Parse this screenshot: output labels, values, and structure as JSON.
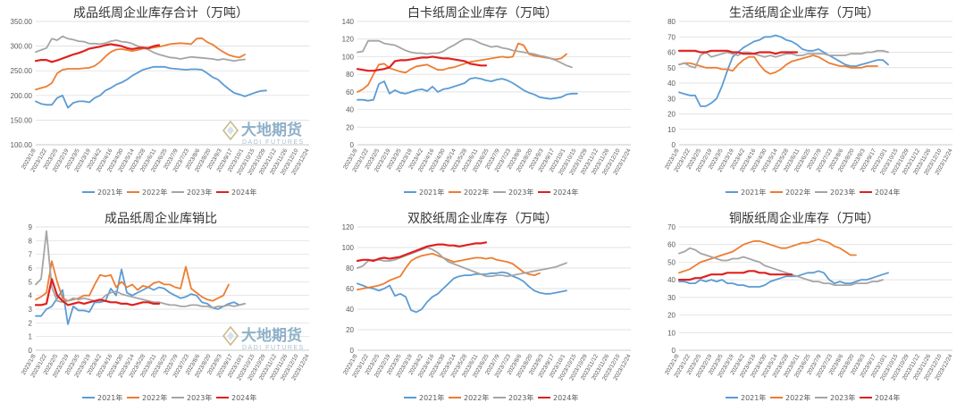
{
  "colors": {
    "2021": "#5b9bd5",
    "2022": "#ed7d31",
    "2023": "#a5a5a5",
    "2024": "#e02020"
  },
  "watermark": {
    "text": "大地期货",
    "sub": "DADI FUTURES"
  },
  "x_labels_mmdd": [
    "1/8",
    "1/22",
    "2/5",
    "2/19",
    "3/5",
    "3/19",
    "4/2",
    "4/16",
    "4/30",
    "5/14",
    "5/28",
    "6/11",
    "6/25",
    "7/9",
    "7/23",
    "8/6",
    "8/20",
    "9/3",
    "9/17",
    "10/1",
    "10/15",
    "10/29",
    "11/12",
    "11/26",
    "12/10",
    "12/24"
  ],
  "chart_data": [
    {
      "type": "line",
      "title": "成品纸周企业库存合计（万吨）",
      "ylim": [
        100,
        350
      ],
      "yticks": [
        "100.00",
        "150.00",
        "200.00",
        "250.00",
        "300.00",
        "350.00"
      ],
      "x_tick_prefix": "2023/",
      "legend_position": "bottom",
      "watermark": true,
      "series": [
        {
          "name": "2021年",
          "values": [
            188,
            183,
            181,
            181,
            195,
            200,
            175,
            185,
            188,
            188,
            186,
            195,
            200,
            210,
            215,
            222,
            226,
            232,
            240,
            246,
            252,
            255,
            258,
            258,
            258,
            255,
            254,
            253,
            252,
            253,
            253,
            252,
            245,
            237,
            232,
            222,
            213,
            205,
            202,
            198,
            202,
            206,
            209,
            210
          ]
        },
        {
          "name": "2022年",
          "values": [
            212,
            215,
            218,
            225,
            245,
            252,
            254,
            254,
            254,
            255,
            256,
            260,
            268,
            279,
            288,
            293,
            294,
            292,
            290,
            292,
            295,
            295,
            297,
            299,
            301,
            304,
            305,
            306,
            305,
            304,
            315,
            316,
            308,
            303,
            295,
            288,
            282,
            279,
            277,
            283
          ]
        },
        {
          "name": "2023年",
          "values": [
            288,
            292,
            296,
            315,
            312,
            320,
            315,
            313,
            310,
            309,
            305,
            305,
            304,
            306,
            310,
            312,
            309,
            308,
            305,
            300,
            297,
            293,
            287,
            283,
            280,
            277,
            276,
            274,
            276,
            278,
            277,
            276,
            275,
            274,
            272,
            274,
            272,
            270,
            272,
            273
          ]
        },
        {
          "name": "2024年",
          "values": [
            270,
            272,
            272,
            268,
            271,
            275,
            279,
            283,
            286,
            290,
            295,
            297,
            299,
            302,
            304,
            302,
            300,
            296,
            294,
            296,
            297,
            296,
            300,
            302
          ]
        }
      ]
    },
    {
      "type": "line",
      "title": "白卡纸周企业库存（万吨）",
      "ylim": [
        0,
        140
      ],
      "yticks": [
        "0",
        "20",
        "40",
        "60",
        "80",
        "100",
        "120",
        "140"
      ],
      "x_tick_prefix": "2023/",
      "legend_position": "bottom",
      "watermark": false,
      "series": [
        {
          "name": "2021年",
          "values": [
            51,
            51,
            50,
            51,
            69,
            72,
            58,
            62,
            59,
            58,
            60,
            62,
            63,
            61,
            66,
            60,
            63,
            64,
            66,
            68,
            70,
            75,
            76,
            75,
            73,
            72,
            74,
            75,
            73,
            70,
            66,
            62,
            59,
            57,
            54,
            53,
            52,
            53,
            54,
            57,
            58,
            58
          ]
        },
        {
          "name": "2022年",
          "values": [
            60,
            63,
            68,
            80,
            91,
            92,
            87,
            85,
            83,
            82,
            86,
            89,
            90,
            91,
            88,
            85,
            85,
            87,
            88,
            90,
            92,
            94,
            95,
            96,
            97,
            98,
            99,
            100,
            99,
            100,
            115,
            113,
            103,
            101,
            100,
            99,
            98,
            97,
            98,
            103
          ]
        },
        {
          "name": "2023年",
          "values": [
            105,
            106,
            118,
            118,
            118,
            115,
            114,
            113,
            110,
            107,
            105,
            104,
            104,
            103,
            104,
            104,
            106,
            110,
            113,
            117,
            120,
            120,
            118,
            115,
            113,
            111,
            112,
            110,
            109,
            107,
            106,
            105,
            104,
            103,
            101,
            100,
            98,
            96,
            93,
            90,
            88
          ]
        },
        {
          "name": "2024年",
          "values": [
            86,
            85,
            84,
            84,
            85,
            86,
            88,
            95,
            96,
            96,
            97,
            98,
            99,
            99,
            100,
            99,
            98,
            98,
            97,
            96,
            95,
            92,
            91,
            90,
            90
          ]
        }
      ]
    },
    {
      "type": "line",
      "title": "生活纸周企业库存（万吨）",
      "ylim": [
        0,
        80
      ],
      "yticks": [
        "0",
        "10",
        "20",
        "30",
        "40",
        "50",
        "60",
        "70",
        "80"
      ],
      "x_tick_prefix": "2023/",
      "legend_position": "bottom",
      "watermark": false,
      "series": [
        {
          "name": "2021年",
          "values": [
            34,
            33,
            32,
            32,
            25,
            25,
            27,
            30,
            38,
            48,
            57,
            60,
            63,
            65,
            67,
            68,
            70,
            70,
            71,
            70,
            68,
            67,
            65,
            62,
            61,
            61,
            62,
            60,
            58,
            56,
            54,
            52,
            51,
            51,
            52,
            53,
            54,
            55,
            55,
            52
          ]
        },
        {
          "name": "2022年",
          "values": [
            52,
            53,
            53,
            52,
            51,
            50,
            50,
            50,
            49,
            49,
            48,
            52,
            55,
            57,
            57,
            52,
            48,
            46,
            47,
            49,
            52,
            54,
            55,
            56,
            57,
            58,
            57,
            55,
            53,
            52,
            51,
            51,
            50,
            50,
            50,
            51,
            51,
            51
          ]
        },
        {
          "name": "2023年",
          "values": [
            52,
            53,
            51,
            50,
            58,
            60,
            57,
            58,
            59,
            60,
            59,
            58,
            60,
            60,
            59,
            58,
            57,
            58,
            57,
            58,
            59,
            59,
            58,
            58,
            59,
            59,
            59,
            59,
            58,
            58,
            58,
            58,
            59,
            59,
            59,
            60,
            60,
            61,
            61,
            60
          ]
        },
        {
          "name": "2024年",
          "values": [
            61,
            61,
            61,
            61,
            60,
            60,
            61,
            61,
            61,
            61,
            60,
            60,
            59,
            59,
            59,
            60,
            60,
            60,
            59,
            60,
            60,
            60,
            60
          ]
        }
      ]
    },
    {
      "type": "line",
      "title": "成品纸周企业库销比",
      "ylim": [
        0,
        9
      ],
      "yticks": [
        "0",
        "1",
        "2",
        "3",
        "4",
        "5",
        "6",
        "7",
        "8",
        "9"
      ],
      "x_tick_prefix": "2023/",
      "legend_position": "bottom",
      "watermark": true,
      "series": [
        {
          "name": "2021年",
          "values": [
            2.5,
            2.5,
            3.0,
            3.2,
            3.8,
            4.4,
            1.9,
            3.2,
            2.9,
            2.9,
            2.8,
            3.5,
            3.5,
            3.6,
            4.5,
            4.0,
            5.9,
            4.2,
            4.0,
            4.2,
            4.4,
            4.6,
            4.4,
            4.6,
            4.5,
            4.2,
            4.0,
            3.8,
            3.9,
            4.1,
            4.0,
            3.5,
            3.4,
            3.1,
            3.0,
            3.2,
            3.4,
            3.5,
            3.3,
            3.4
          ]
        },
        {
          "name": "2022年",
          "values": [
            3.7,
            3.9,
            4.2,
            6.5,
            5.0,
            3.8,
            3.6,
            3.7,
            3.8,
            4.0,
            4.0,
            4.8,
            5.5,
            5.4,
            5.5,
            4.6,
            5.0,
            4.6,
            4.8,
            4.4,
            4.7,
            4.6,
            4.9,
            5.0,
            4.8,
            4.8,
            4.6,
            4.5,
            6.1,
            4.5,
            4.2,
            3.9,
            3.7,
            3.6,
            3.8,
            4.0,
            4.8
          ]
        },
        {
          "name": "2023年",
          "values": [
            4.8,
            5.2,
            8.7,
            4.6,
            3.6,
            3.5,
            3.6,
            3.8,
            3.7,
            3.8,
            3.7,
            3.6,
            3.6,
            4.0,
            4.2,
            4.3,
            4.1,
            4.0,
            3.9,
            3.8,
            3.7,
            3.6,
            3.5,
            3.5,
            3.4,
            3.3,
            3.3,
            3.2,
            3.2,
            3.3,
            3.3,
            3.2,
            3.2,
            3.1,
            3.2,
            3.2,
            3.3,
            3.2,
            3.3,
            3.4
          ]
        },
        {
          "name": "2024年",
          "values": [
            3.3,
            3.3,
            3.4,
            5.2,
            4.0,
            3.6,
            3.3,
            3.4,
            3.5,
            3.4,
            3.5,
            3.6,
            3.7,
            3.6,
            3.5,
            3.5,
            3.4,
            3.4,
            3.3,
            3.4,
            3.5,
            3.5,
            3.4,
            3.4
          ]
        }
      ]
    },
    {
      "type": "line",
      "title": "双胶纸周企业库存（万吨）",
      "ylim": [
        0,
        120
      ],
      "yticks": [
        "0",
        "20",
        "40",
        "60",
        "80",
        "100",
        "120"
      ],
      "x_tick_prefix": "2023/",
      "legend_position": "bottom",
      "watermark": false,
      "series": [
        {
          "name": "2021年",
          "values": [
            65,
            63,
            61,
            60,
            58,
            60,
            63,
            53,
            55,
            52,
            39,
            37,
            40,
            47,
            52,
            55,
            60,
            65,
            70,
            72,
            73,
            73,
            74,
            74,
            74,
            75,
            75,
            76,
            75,
            72,
            70,
            67,
            62,
            58,
            56,
            55,
            55,
            56,
            57,
            58
          ]
        },
        {
          "name": "2022年",
          "values": [
            59,
            60,
            61,
            62,
            63,
            65,
            68,
            70,
            72,
            80,
            87,
            90,
            92,
            93,
            94,
            92,
            90,
            88,
            86,
            87,
            88,
            89,
            90,
            90,
            89,
            90,
            88,
            87,
            86,
            84,
            80,
            76,
            74,
            73,
            75
          ]
        },
        {
          "name": "2023年",
          "values": [
            80,
            82,
            87,
            88,
            88,
            87,
            87,
            88,
            90,
            92,
            94,
            96,
            98,
            100,
            98,
            95,
            90,
            86,
            84,
            82,
            80,
            78,
            76,
            74,
            72,
            72,
            73,
            73,
            72,
            73,
            74,
            75,
            76,
            77,
            78,
            79,
            80,
            81,
            83,
            85
          ]
        },
        {
          "name": "2024年",
          "values": [
            87,
            88,
            88,
            87,
            89,
            90,
            89,
            90,
            91,
            93,
            95,
            97,
            99,
            101,
            102,
            103,
            103,
            102,
            102,
            101,
            102,
            103,
            104,
            104,
            105
          ]
        }
      ]
    },
    {
      "type": "line",
      "title": "铜版纸周企业库存（万吨）",
      "ylim": [
        0,
        70
      ],
      "yticks": [
        "0",
        "10",
        "20",
        "30",
        "40",
        "50",
        "60",
        "70"
      ],
      "x_tick_prefix": "2023/",
      "legend_position": "bottom",
      "watermark": false,
      "series": [
        {
          "name": "2021年",
          "values": [
            39,
            39,
            38,
            38,
            40,
            39,
            40,
            39,
            40,
            38,
            38,
            37,
            37,
            36,
            36,
            36,
            37,
            39,
            40,
            41,
            42,
            42,
            42,
            43,
            44,
            44,
            45,
            44,
            40,
            38,
            39,
            38,
            38,
            39,
            40,
            40,
            41,
            42,
            43,
            44
          ]
        },
        {
          "name": "2022年",
          "values": [
            44,
            45,
            46,
            48,
            50,
            51,
            52,
            53,
            54,
            55,
            56,
            58,
            60,
            61,
            62,
            62,
            61,
            60,
            59,
            58,
            58,
            59,
            60,
            61,
            61,
            62,
            63,
            62,
            61,
            59,
            58,
            56,
            54,
            54
          ]
        },
        {
          "name": "2023年",
          "values": [
            55,
            56,
            58,
            57,
            55,
            54,
            53,
            52,
            51,
            51,
            52,
            52,
            53,
            52,
            51,
            50,
            48,
            47,
            46,
            45,
            44,
            43,
            42,
            41,
            40,
            39,
            39,
            38,
            38,
            37,
            37,
            37,
            37,
            38,
            38,
            38,
            39,
            39,
            40
          ]
        },
        {
          "name": "2024年",
          "values": [
            40,
            40,
            40,
            41,
            41,
            42,
            43,
            43,
            43,
            44,
            44,
            44,
            44,
            45,
            45,
            44,
            44,
            43,
            43,
            43,
            43,
            43
          ]
        }
      ]
    }
  ]
}
